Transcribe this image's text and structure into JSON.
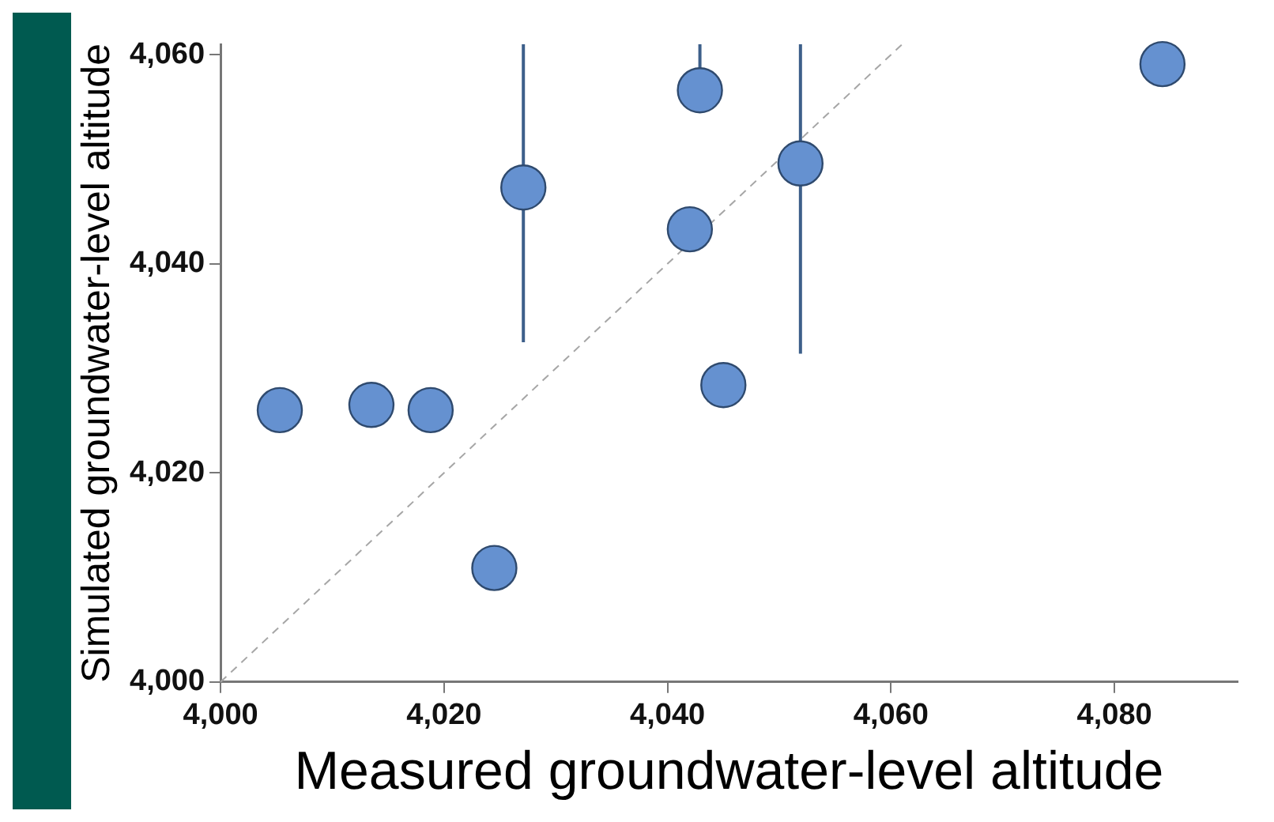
{
  "chart_data": {
    "type": "scatter",
    "xlabel": "Measured groundwater-level altitude",
    "ylabel": "Simulated groundwater-level altitude",
    "xlim": [
      4000,
      4091
    ],
    "ylim": [
      4000,
      4061
    ],
    "xticks": [
      {
        "value": 4000,
        "label": "4,000"
      },
      {
        "value": 4020,
        "label": "4,020"
      },
      {
        "value": 4040,
        "label": "4,040"
      },
      {
        "value": 4060,
        "label": "4,060"
      },
      {
        "value": 4080,
        "label": "4,080"
      }
    ],
    "yticks": [
      {
        "value": 4000,
        "label": "4,000"
      },
      {
        "value": 4020,
        "label": "4,020"
      },
      {
        "value": 4040,
        "label": "4,040"
      },
      {
        "value": 4060,
        "label": "4,060"
      }
    ],
    "grid": false,
    "legend": false,
    "marker": "circle",
    "series": [
      {
        "type": "scatter",
        "color": "#6591d0",
        "x": [
          4005.3,
          4013.5,
          4018.8,
          4024.5,
          4027.1,
          4042,
          4042.9,
          4045,
          4051.9,
          4084.3
        ],
        "values": [
          4026,
          4026.5,
          4026,
          4010.9,
          4047.3,
          4043.3,
          4056.6,
          4028.4,
          4049.6,
          4059.1
        ],
        "errors": [
          null,
          null,
          null,
          null,
          [
            4032.5,
            4061
          ],
          null,
          [
            4056.6,
            4061
          ],
          null,
          [
            4031.4,
            4061
          ],
          null
        ]
      },
      {
        "type": "line",
        "color": "#a6a6a6",
        "line_style": "dashed",
        "marker": "none",
        "x": [
          4000,
          4061
        ],
        "values": [
          4000,
          4061
        ]
      }
    ]
  }
}
